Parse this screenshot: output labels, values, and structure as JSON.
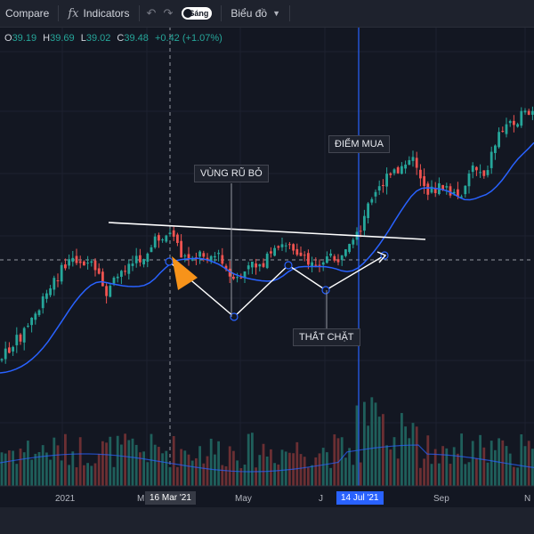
{
  "toolbar": {
    "compare": "Compare",
    "fx": "fx",
    "indicators": "Indicators",
    "undo": "↶",
    "redo": "↷",
    "theme_toggle": "Sáng",
    "chart_type": "Biểu đồ"
  },
  "ohlc": {
    "o_label": "O",
    "o": "39.19",
    "h_label": "H",
    "h": "39.69",
    "l_label": "L",
    "l": "39.02",
    "c_label": "C",
    "c": "39.48",
    "change": "+0.42 (+1.07%)"
  },
  "annotations": {
    "vung_ru_bo": "VÙNG RŨ BỎ",
    "diem_mua": "ĐIỂM MUA",
    "that_chat": "THẮT CHẶT"
  },
  "xaxis": {
    "ticks": [
      "2021",
      "M",
      "May",
      "J",
      "Sep",
      "N"
    ],
    "crosshair_date": "16 Mar '21",
    "buy_date": "14 Jul '21"
  },
  "colors": {
    "up": "#26a69a",
    "down": "#ef5350",
    "ma": "#2962ff",
    "background": "#131722",
    "annotation": "#ffffff",
    "highlight": "#f7931a",
    "buy_line": "#2962ff"
  },
  "chart_data": {
    "type": "candlestick",
    "x_range": [
      "2020-12",
      "2021-11"
    ],
    "price_trend": [
      {
        "x": "2020-12",
        "close": 30
      },
      {
        "x": "2021-01",
        "close": 34
      },
      {
        "x": "2021-02",
        "close": 38
      },
      {
        "x": "2021-03",
        "close": 40
      },
      {
        "x": "2021-04",
        "close": 39
      },
      {
        "x": "2021-05",
        "close": 38
      },
      {
        "x": "2021-06",
        "close": 39
      },
      {
        "x": "2021-07",
        "close": 42
      },
      {
        "x": "2021-08",
        "close": 46
      },
      {
        "x": "2021-09",
        "close": 47
      },
      {
        "x": "2021-10",
        "close": 50
      },
      {
        "x": "2021-11",
        "close": 52
      }
    ],
    "moving_average": true,
    "volume": true
  }
}
